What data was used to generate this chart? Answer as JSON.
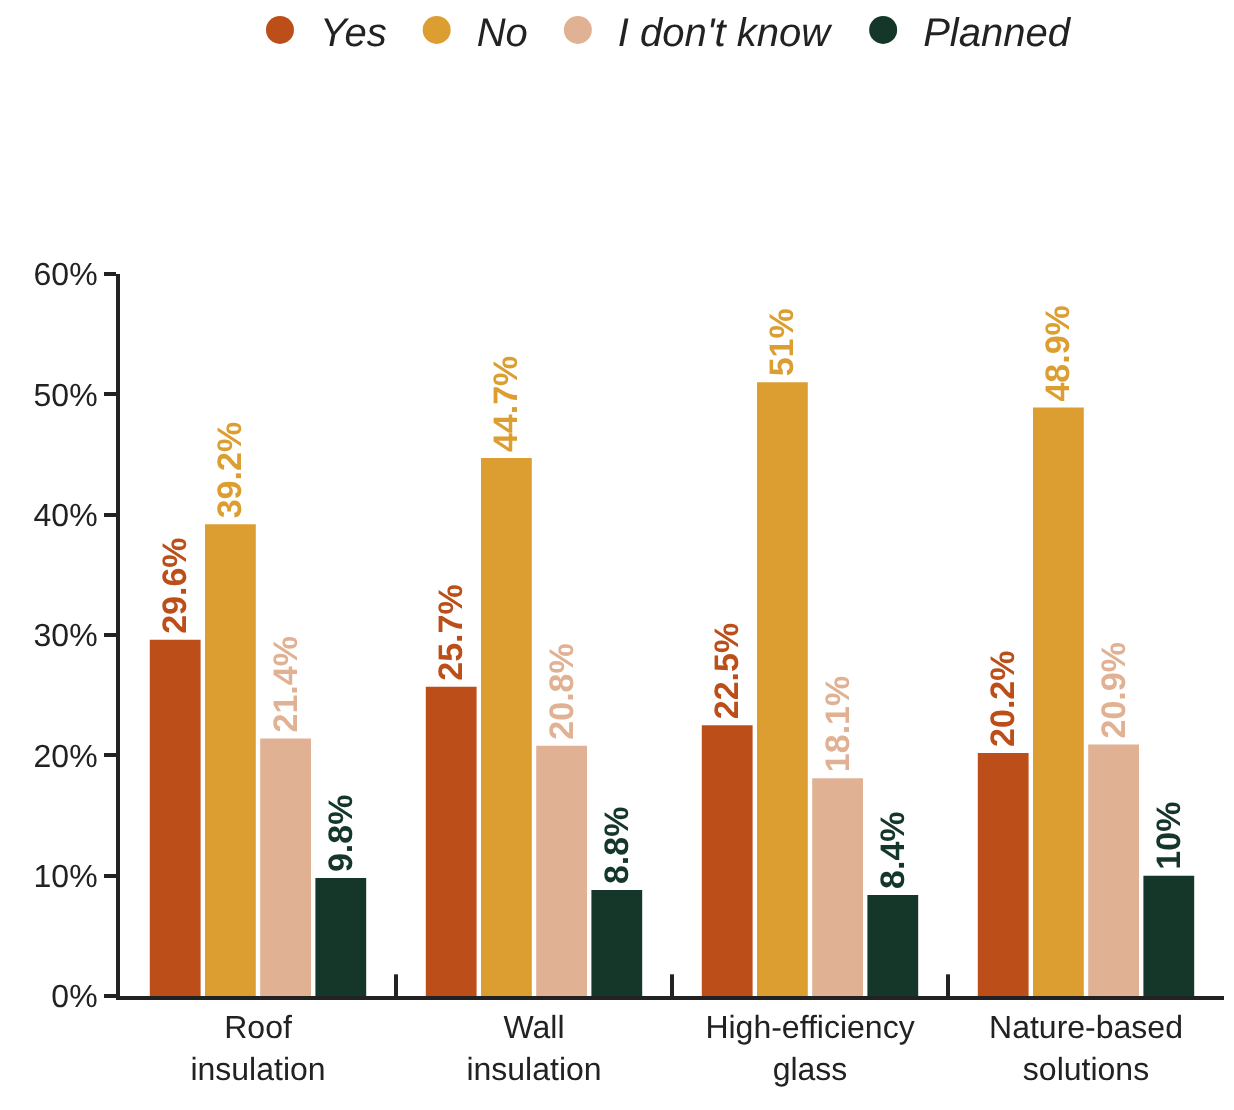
{
  "chart_data": {
    "type": "bar",
    "categories": [
      "Roof insulation",
      "Wall insulation",
      "High-efficiency glass",
      "Nature-based solutions"
    ],
    "series": [
      {
        "name": "Yes",
        "color": "#bc4f19",
        "values": [
          29.6,
          25.7,
          22.5,
          20.2
        ],
        "value_labels": [
          "29.6%",
          "25.7%",
          "22.5%",
          "20.2%"
        ]
      },
      {
        "name": "No",
        "color": "#dc9e31",
        "values": [
          39.2,
          44.7,
          51,
          48.9
        ],
        "value_labels": [
          "39.2%",
          "44.7%",
          "51%",
          "48.9%"
        ]
      },
      {
        "name": "I don't know",
        "color": "#e0b193",
        "values": [
          21.4,
          20.8,
          18.1,
          20.9
        ],
        "value_labels": [
          "21.4%",
          "20.8%",
          "18.1%",
          "20.9%"
        ]
      },
      {
        "name": "Planned",
        "color": "#14372a",
        "values": [
          9.8,
          8.8,
          8.4,
          10
        ],
        "value_labels": [
          "9.8%",
          "8.8%",
          "8.4%",
          "10%"
        ]
      }
    ],
    "ylim": [
      0,
      60
    ],
    "yticks": [
      {
        "value": 0,
        "label": "0%"
      },
      {
        "value": 10,
        "label": "10%"
      },
      {
        "value": 20,
        "label": "20%"
      },
      {
        "value": 30,
        "label": "30%"
      },
      {
        "value": 40,
        "label": "40%"
      },
      {
        "value": 50,
        "label": "50%"
      },
      {
        "value": 60,
        "label": "60%"
      }
    ],
    "legend": "top"
  }
}
